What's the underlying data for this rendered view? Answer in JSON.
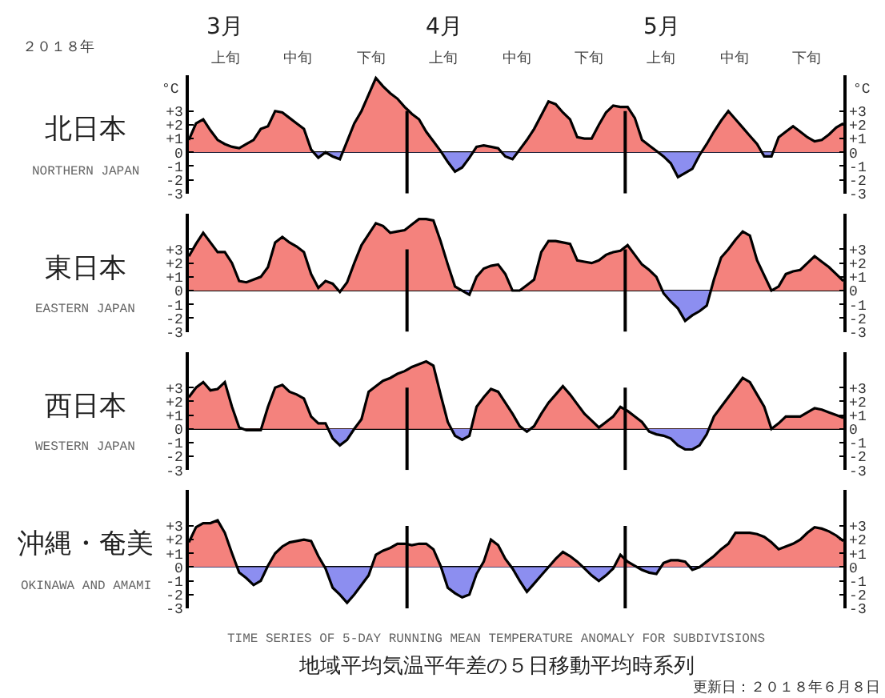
{
  "chart_data": [
    {
      "type": "area",
      "title": "北日本",
      "subtitle": "NORTHERN JAPAN",
      "ylabel": "°C",
      "y2label": "°C",
      "annotations": [
        "２０１８年",
        "3月",
        "4月",
        "5月",
        "上旬",
        "中旬",
        "下旬",
        "上旬",
        "中旬",
        "下旬",
        "上旬",
        "中旬",
        "下旬"
      ],
      "categories": [
        null,
        null,
        null,
        null,
        null,
        null,
        null,
        null,
        null,
        null,
        null,
        null,
        null,
        null,
        null,
        null,
        null,
        null,
        null,
        null,
        null,
        null,
        null,
        null,
        null,
        null,
        null,
        null,
        null,
        null,
        null,
        null,
        null,
        null,
        null,
        null,
        null,
        null,
        null,
        null,
        null,
        null,
        null,
        null,
        null,
        null,
        null,
        null,
        null,
        null,
        null,
        null,
        null,
        null,
        null,
        null,
        null,
        null,
        null,
        null,
        null,
        null,
        null,
        null,
        null,
        null,
        null,
        null,
        null,
        null,
        null,
        null,
        null,
        null,
        null,
        null,
        null,
        null,
        null,
        null,
        null,
        null,
        null,
        null,
        null,
        null,
        null,
        null,
        null,
        null,
        null,
        null
      ],
      "series": [
        {
          "color": "#000000",
          "values": [
            0.9,
            2.1,
            2.4,
            1.6,
            0.9,
            0.6,
            0.4,
            0.3,
            0.6,
            0.9,
            1.7,
            1.9,
            3.0,
            2.9,
            2.5,
            2.1,
            1.7,
            0.2,
            -0.4,
            0,
            -0.3,
            -0.5,
            0.8,
            2.1,
            3.0,
            4.2,
            5.4,
            4.8,
            4.3,
            3.9,
            3.3,
            2.8,
            2.4,
            1.5,
            0.8,
            0.1,
            -0.7,
            -1.4,
            -1.1,
            -0.4,
            0.4,
            0.5,
            0.4,
            0.3,
            -0.3,
            -0.5,
            0.2,
            0.9,
            1.7,
            2.7,
            3.7,
            3.5,
            2.9,
            2.4,
            1.1,
            1.0,
            1.0,
            2.0,
            2.9,
            3.4,
            3.3,
            3.3,
            2.5,
            0.9,
            0.5,
            0.1,
            -0.3,
            -0.8,
            -1.8,
            -1.5,
            -1.2,
            -0.2,
            0.6,
            1.5,
            2.3,
            3.0,
            2.4,
            1.8,
            1.2,
            0.6,
            -0.3,
            -0.3,
            1.1,
            1.5,
            1.9,
            1.5,
            1.1,
            0.8,
            0.9,
            1.3,
            1.8,
            2.1
          ]
        }
      ],
      "colors": [
        "#f4827d",
        "#8c8ef0"
      ],
      "ylim": [
        -3,
        5.6
      ],
      "yticks": [
        {
          "value": 3,
          "label": "+3"
        },
        {
          "value": 2,
          "label": "+2"
        },
        {
          "value": 1,
          "label": "+1"
        },
        0,
        -1,
        -2,
        -3
      ],
      "y2lim": [
        -3,
        5.6
      ],
      "y2ticks": [
        {
          "value": 3,
          "label": "+3"
        },
        {
          "value": 2,
          "label": "+2"
        },
        {
          "value": 1,
          "label": "+1"
        },
        0,
        -1,
        -2,
        -3
      ]
    },
    {
      "type": "area",
      "title": "東日本",
      "subtitle": "EASTERN JAPAN",
      "categories": [
        null,
        null,
        null,
        null,
        null,
        null,
        null,
        null,
        null,
        null,
        null,
        null,
        null,
        null,
        null,
        null,
        null,
        null,
        null,
        null,
        null,
        null,
        null,
        null,
        null,
        null,
        null,
        null,
        null,
        null,
        null,
        null,
        null,
        null,
        null,
        null,
        null,
        null,
        null,
        null,
        null,
        null,
        null,
        null,
        null,
        null,
        null,
        null,
        null,
        null,
        null,
        null,
        null,
        null,
        null,
        null,
        null,
        null,
        null,
        null,
        null,
        null,
        null,
        null,
        null,
        null,
        null,
        null,
        null,
        null,
        null,
        null,
        null,
        null,
        null,
        null,
        null,
        null,
        null,
        null,
        null,
        null,
        null,
        null,
        null,
        null,
        null,
        null,
        null,
        null,
        null,
        null
      ],
      "series": [
        {
          "color": "#000000",
          "values": [
            2.5,
            3.4,
            4.2,
            3.5,
            2.8,
            2.8,
            2.0,
            0.7,
            0.6,
            0.8,
            1.0,
            1.7,
            3.5,
            3.9,
            3.5,
            3.2,
            2.8,
            1.2,
            0.2,
            0.7,
            0.5,
            -0.1,
            0.6,
            2.0,
            3.3,
            4.1,
            4.9,
            4.7,
            4.2,
            4.3,
            4.4,
            4.8,
            5.2,
            5.2,
            5.1,
            3.6,
            1.9,
            0.3,
            0,
            -0.3,
            1.0,
            1.6,
            1.8,
            1.9,
            1.2,
            0,
            0,
            0.4,
            0.8,
            2.8,
            3.6,
            3.6,
            3.5,
            3.4,
            2.2,
            2.1,
            2.0,
            2.2,
            2.6,
            2.8,
            2.9,
            3.3,
            2.6,
            1.9,
            1.5,
            1.0,
            -0.2,
            -0.8,
            -1.3,
            -2.2,
            -1.8,
            -1.5,
            -1.1,
            0.8,
            2.4,
            3.0,
            3.7,
            4.3,
            4.0,
            2.2,
            1.1,
            0,
            0.3,
            1.2,
            1.4,
            1.5,
            2.0,
            2.5,
            2.1,
            1.7,
            1.2,
            0.7
          ]
        }
      ],
      "colors": [
        "#f4827d",
        "#8c8ef0"
      ],
      "ylim": [
        -3,
        5.6
      ],
      "yticks": [
        {
          "value": 3,
          "label": "+3"
        },
        {
          "value": 2,
          "label": "+2"
        },
        {
          "value": 1,
          "label": "+1"
        },
        0,
        -1,
        -2,
        -3
      ],
      "y2lim": [
        -3,
        5.6
      ],
      "y2ticks": [
        {
          "value": 3,
          "label": "+3"
        },
        {
          "value": 2,
          "label": "+2"
        },
        {
          "value": 1,
          "label": "+1"
        },
        0,
        -1,
        -2,
        -3
      ]
    },
    {
      "type": "area",
      "title": "西日本",
      "subtitle": "WESTERN JAPAN",
      "categories": [
        null,
        null,
        null,
        null,
        null,
        null,
        null,
        null,
        null,
        null,
        null,
        null,
        null,
        null,
        null,
        null,
        null,
        null,
        null,
        null,
        null,
        null,
        null,
        null,
        null,
        null,
        null,
        null,
        null,
        null,
        null,
        null,
        null,
        null,
        null,
        null,
        null,
        null,
        null,
        null,
        null,
        null,
        null,
        null,
        null,
        null,
        null,
        null,
        null,
        null,
        null,
        null,
        null,
        null,
        null,
        null,
        null,
        null,
        null,
        null,
        null,
        null,
        null,
        null,
        null,
        null,
        null,
        null,
        null,
        null,
        null,
        null,
        null,
        null,
        null,
        null,
        null,
        null,
        null,
        null,
        null,
        null,
        null,
        null,
        null,
        null,
        null,
        null,
        null,
        null,
        null,
        null
      ],
      "series": [
        {
          "color": "#000000",
          "values": [
            2.3,
            3.0,
            3.4,
            2.8,
            2.9,
            3.4,
            1.6,
            0.1,
            -0.1,
            -0.1,
            -0.1,
            1.6,
            3.0,
            3.2,
            2.7,
            2.5,
            2.2,
            0.9,
            0.4,
            0.4,
            -0.7,
            -1.2,
            -0.8,
            0,
            0.7,
            2.7,
            3.1,
            3.5,
            3.7,
            4.0,
            4.2,
            4.5,
            4.7,
            4.9,
            4.6,
            2.5,
            0.5,
            -0.5,
            -0.8,
            -0.5,
            1.6,
            2.3,
            2.9,
            2.7,
            1.9,
            1.1,
            0.2,
            -0.2,
            0.2,
            1.1,
            1.9,
            2.5,
            3.1,
            2.5,
            1.8,
            1.1,
            0.6,
            0.1,
            0.5,
            0.9,
            1.6,
            1.3,
            0.9,
            0.5,
            -0.2,
            -0.4,
            -0.5,
            -0.7,
            -1.2,
            -1.5,
            -1.5,
            -1.2,
            -0.4,
            0.9,
            1.6,
            2.3,
            3.0,
            3.7,
            3.4,
            2.5,
            1.6,
            0,
            0.4,
            0.9,
            0.9,
            0.9,
            1.2,
            1.5,
            1.4,
            1.2,
            1.0,
            0.8
          ]
        }
      ],
      "colors": [
        "#f4827d",
        "#8c8ef0"
      ],
      "ylim": [
        -3,
        5.6
      ],
      "yticks": [
        {
          "value": 3,
          "label": "+3"
        },
        {
          "value": 2,
          "label": "+2"
        },
        {
          "value": 1,
          "label": "+1"
        },
        0,
        -1,
        -2,
        -3
      ],
      "y2lim": [
        -3,
        5.6
      ],
      "y2ticks": [
        {
          "value": 3,
          "label": "+3"
        },
        {
          "value": 2,
          "label": "+2"
        },
        {
          "value": 1,
          "label": "+1"
        },
        0,
        -1,
        -2,
        -3
      ]
    },
    {
      "type": "area",
      "title": "沖縄・奄美",
      "subtitle": "OKINAWA AND AMAMI",
      "annotations": [
        "TIME SERIES OF 5-DAY RUNNING MEAN TEMPERATURE ANOMALY FOR SUBDIVISIONS",
        "地域平均気温平年差の５日移動平均時系列",
        "更新日：２０１８年６月８日"
      ],
      "categories": [
        null,
        null,
        null,
        null,
        null,
        null,
        null,
        null,
        null,
        null,
        null,
        null,
        null,
        null,
        null,
        null,
        null,
        null,
        null,
        null,
        null,
        null,
        null,
        null,
        null,
        null,
        null,
        null,
        null,
        null,
        null,
        null,
        null,
        null,
        null,
        null,
        null,
        null,
        null,
        null,
        null,
        null,
        null,
        null,
        null,
        null,
        null,
        null,
        null,
        null,
        null,
        null,
        null,
        null,
        null,
        null,
        null,
        null,
        null,
        null,
        null,
        null,
        null,
        null,
        null,
        null,
        null,
        null,
        null,
        null,
        null,
        null,
        null,
        null,
        null,
        null,
        null,
        null,
        null,
        null,
        null,
        null,
        null,
        null,
        null,
        null,
        null,
        null,
        null,
        null,
        null,
        null
      ],
      "series": [
        {
          "color": "#000000",
          "values": [
            1.8,
            2.9,
            3.2,
            3.2,
            3.4,
            2.5,
            1.0,
            -0.4,
            -0.8,
            -1.3,
            -1.0,
            0.1,
            1.0,
            1.5,
            1.8,
            1.9,
            2.0,
            1.9,
            0.8,
            -0.1,
            -1.5,
            -2.0,
            -2.6,
            -2.0,
            -1.3,
            -0.6,
            0.9,
            1.2,
            1.4,
            1.7,
            1.7,
            1.6,
            1.7,
            1.7,
            1.3,
            0.1,
            -1.5,
            -1.9,
            -2.2,
            -2.0,
            -0.5,
            0.4,
            2.0,
            1.6,
            0.6,
            -0.1,
            -1.0,
            -1.8,
            -1.2,
            -0.6,
            0,
            0.6,
            1.1,
            0.8,
            0.4,
            -0.1,
            -0.6,
            -1.0,
            -0.6,
            -0.1,
            0.9,
            0.4,
            0.1,
            -0.2,
            -0.4,
            -0.5,
            0.3,
            0.5,
            0.5,
            0.4,
            -0.2,
            0,
            0.4,
            0.8,
            1.3,
            1.7,
            2.5,
            2.5,
            2.5,
            2.4,
            2.2,
            1.8,
            1.3,
            1.5,
            1.7,
            2.0,
            2.5,
            2.9,
            2.8,
            2.6,
            2.3,
            1.9
          ]
        }
      ],
      "colors": [
        "#f4827d",
        "#8c8ef0"
      ],
      "ylim": [
        -3,
        5.6
      ],
      "yticks": [
        {
          "value": 3,
          "label": "+3"
        },
        {
          "value": 2,
          "label": "+2"
        },
        {
          "value": 1,
          "label": "+1"
        },
        0,
        -1,
        -2,
        -3
      ],
      "y2lim": [
        -3,
        5.6
      ],
      "y2ticks": [
        {
          "value": 3,
          "label": "+3"
        },
        {
          "value": 2,
          "label": "+2"
        },
        {
          "value": 1,
          "label": "+1"
        },
        0,
        -1,
        -2,
        -3
      ]
    }
  ]
}
